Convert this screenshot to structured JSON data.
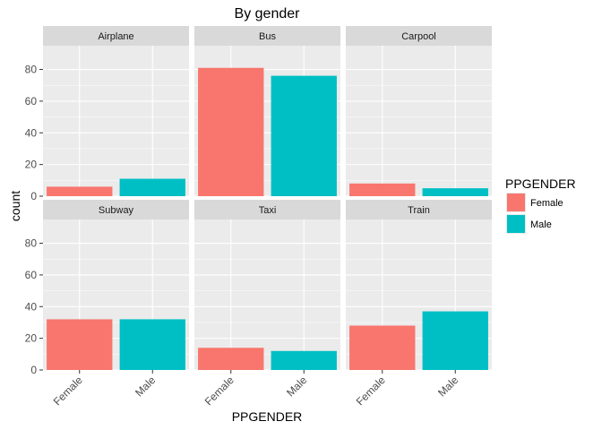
{
  "chart_data": {
    "type": "bar",
    "title": "By gender",
    "xlabel": "PPGENDER",
    "ylabel": "count",
    "ylim": [
      0,
      95
    ],
    "yticks": [
      0,
      20,
      40,
      60,
      80
    ],
    "categories": [
      "Female",
      "Male"
    ],
    "grid": true,
    "facet_layout": "2x3",
    "legend": {
      "title": "PPGENDER",
      "placement": "right",
      "entries": [
        {
          "label": "Female",
          "color": "#F8766D"
        },
        {
          "label": "Male",
          "color": "#00BFC4"
        }
      ]
    },
    "facets": [
      {
        "name": "Airplane",
        "values": [
          6,
          11
        ]
      },
      {
        "name": "Bus",
        "values": [
          81,
          76
        ]
      },
      {
        "name": "Carpool",
        "values": [
          8,
          5
        ]
      },
      {
        "name": "Subway",
        "values": [
          32,
          32
        ]
      },
      {
        "name": "Taxi",
        "values": [
          14,
          12
        ]
      },
      {
        "name": "Train",
        "values": [
          28,
          37
        ]
      }
    ]
  },
  "colors": {
    "panel_bg": "#EBEBEB",
    "strip_bg": "#D9D9D9",
    "grid": "#FFFFFF",
    "female": "#F8766D",
    "male": "#00BFC4"
  }
}
